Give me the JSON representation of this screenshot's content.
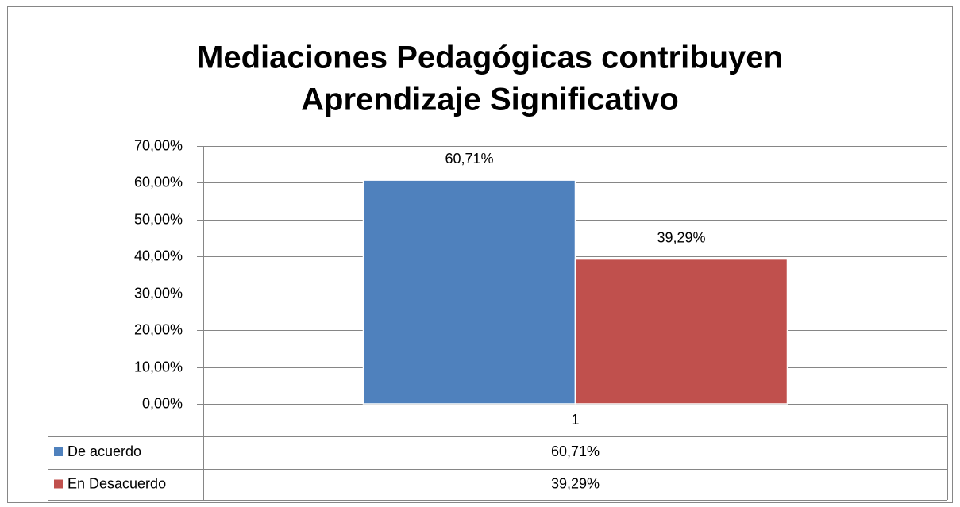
{
  "chart_data": {
    "type": "bar",
    "title": [
      "Mediaciones Pedagógicas contribuyen",
      "Aprendizaje Significativo"
    ],
    "categories": [
      "1"
    ],
    "series": [
      {
        "name": "De acuerdo",
        "color": "#4f81bd",
        "values": [
          60.71
        ],
        "value_labels": [
          "60,71%"
        ]
      },
      {
        "name": "En Desacuerdo",
        "color": "#c0504d",
        "values": [
          39.29
        ],
        "value_labels": [
          "39,29%"
        ]
      }
    ],
    "ylim": [
      0,
      70
    ],
    "yticks": [
      {
        "value": 0,
        "label": "0,00%"
      },
      {
        "value": 10,
        "label": "10,00%"
      },
      {
        "value": 20,
        "label": "20,00%"
      },
      {
        "value": 30,
        "label": "30,00%"
      },
      {
        "value": 40,
        "label": "40,00%"
      },
      {
        "value": 50,
        "label": "50,00%"
      },
      {
        "value": 60,
        "label": "60,00%"
      },
      {
        "value": 70,
        "label": "70,00%"
      }
    ],
    "grid": true,
    "data_table": true
  }
}
